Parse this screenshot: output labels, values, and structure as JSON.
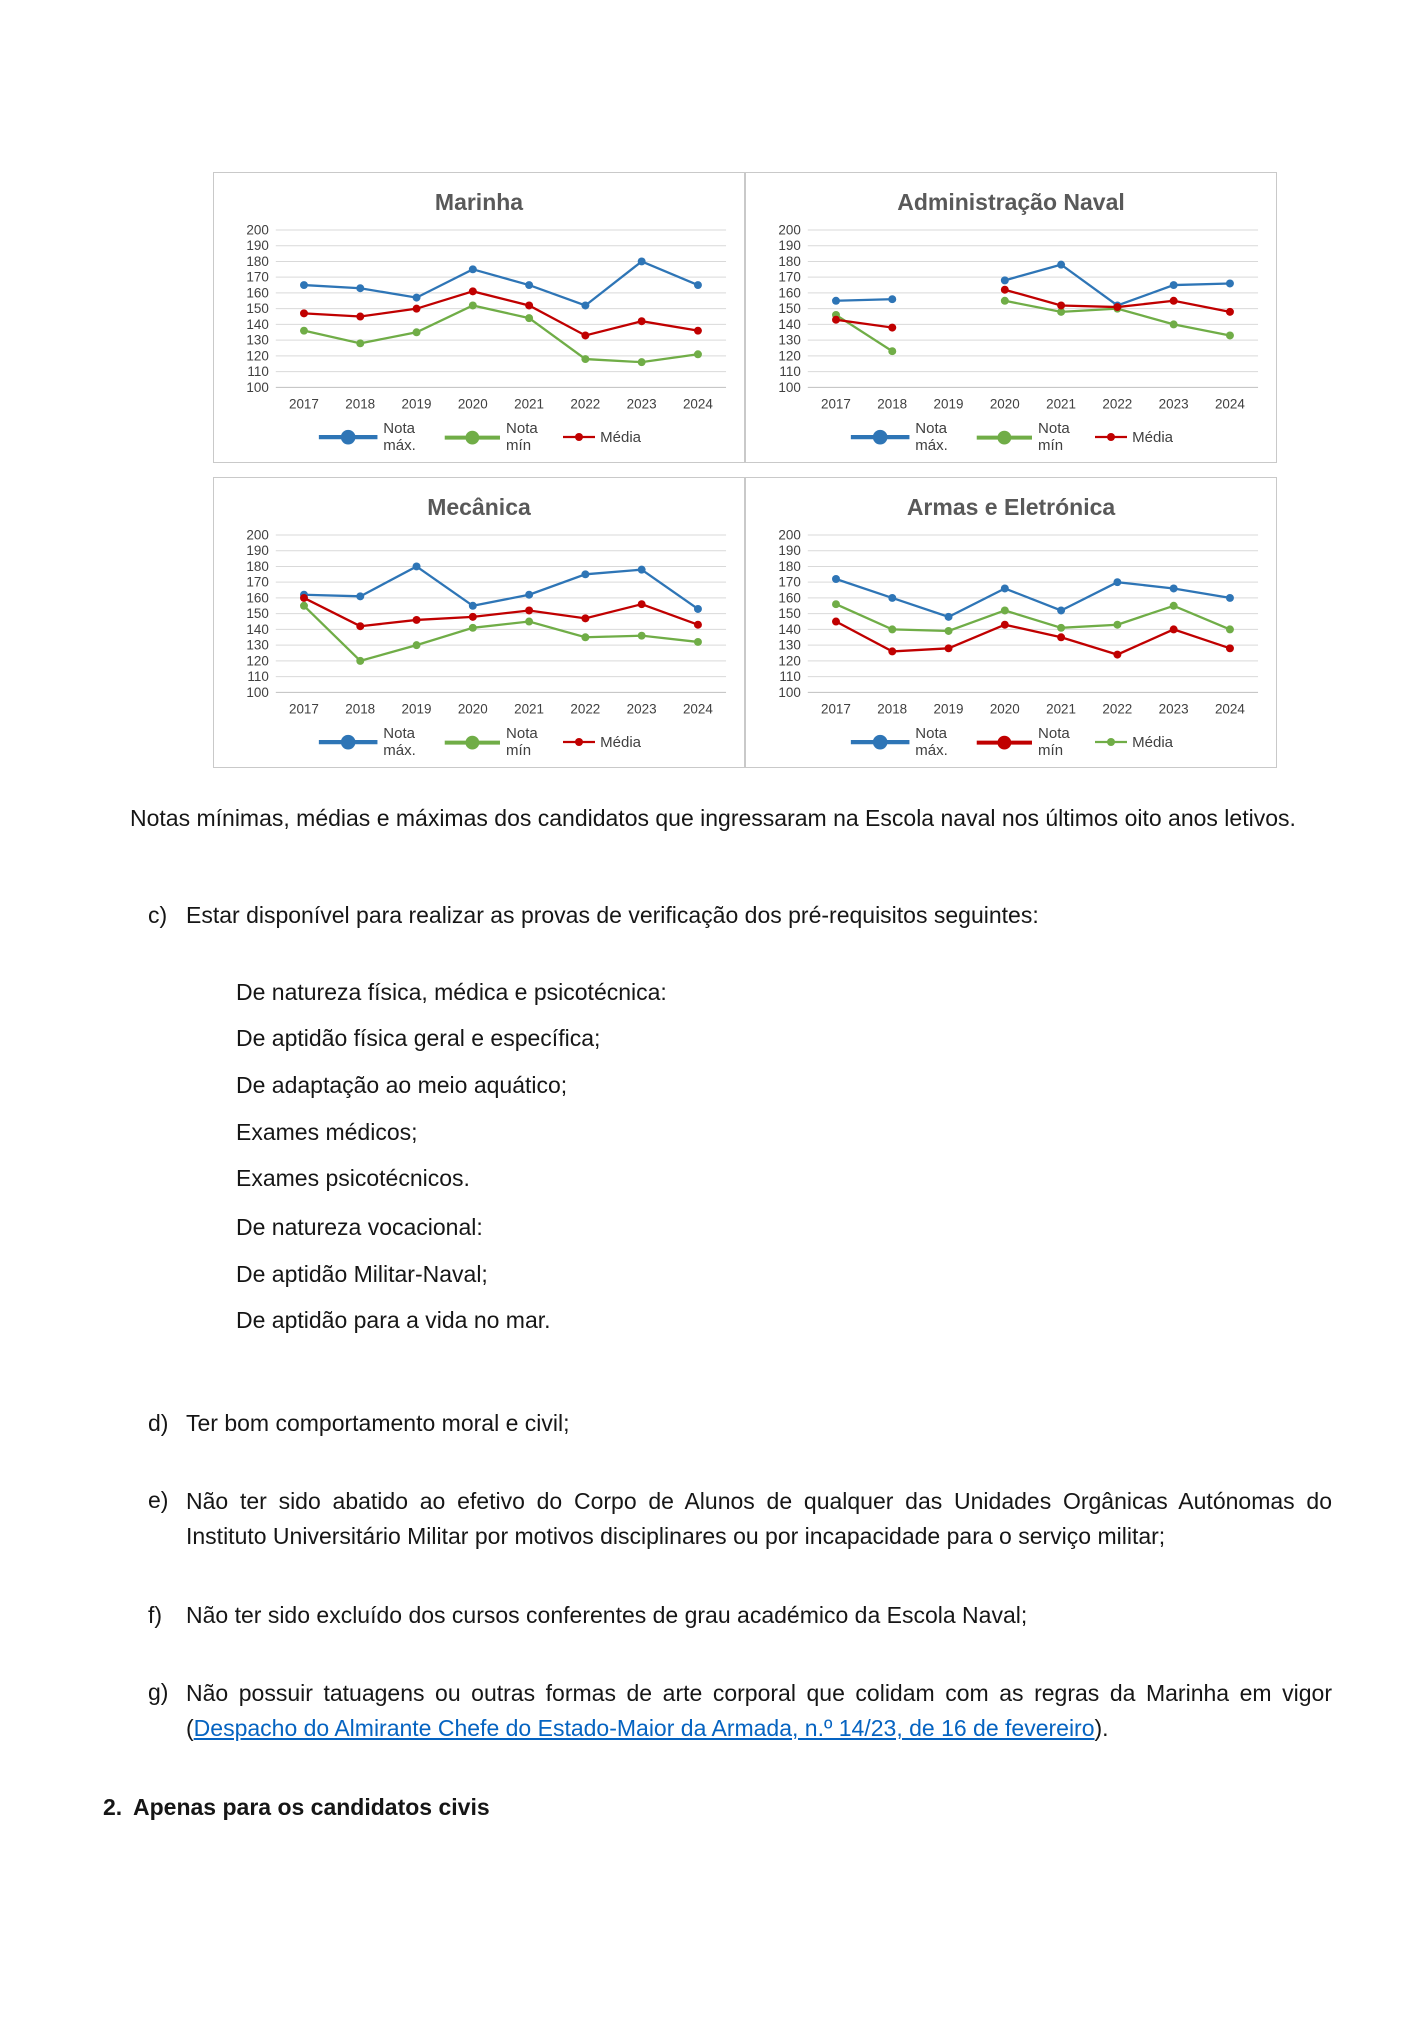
{
  "caption": "Notas mínimas, médias e máximas dos candidatos que ingressaram na Escola naval nos últimos oito anos letivos.",
  "list": {
    "c": {
      "marker": "c)",
      "text": "Estar disponível para realizar as provas de verificação dos pré-requisitos seguintes:"
    },
    "c_sub": [
      "De natureza física, médica e psicotécnica:",
      "De aptidão física geral e específica;",
      "De adaptação ao meio aquático;",
      "Exames médicos;",
      "Exames psicotécnicos.",
      "De natureza vocacional:",
      "De aptidão Militar-Naval;",
      "De aptidão para a vida no mar."
    ],
    "d": {
      "marker": "d)",
      "text": "Ter bom comportamento moral e civil;"
    },
    "e": {
      "marker": "e)",
      "text": "Não ter sido abatido ao efetivo do Corpo de Alunos de qualquer das Unidades Orgânicas Autónomas do Instituto Universitário Militar por motivos disciplinares ou por incapacidade para o serviço militar;"
    },
    "f": {
      "marker": "f)",
      "text": "Não ter sido excluído dos cursos conferentes de grau académico da Escola Naval;"
    },
    "g": {
      "marker": "g)",
      "text_before": "Não possuir tatuagens ou outras formas de arte corporal que colidam com as regras da Marinha em vigor (",
      "link_text": "Despacho do Almirante Chefe do Estado-Maior da Armada, n.º 14/23, de 16 de fevereiro",
      "text_after": ")."
    }
  },
  "heading2": {
    "marker": "2.",
    "text": "Apenas para os candidatos civis"
  },
  "colors": {
    "link": "#0563C1",
    "chart_title": "#595959",
    "grid": "#D9D9D9",
    "blue": "#2E75B6",
    "green": "#70AD47",
    "red": "#C00000"
  },
  "chart_data": [
    {
      "type": "line",
      "title": "Marinha",
      "x": [
        "2017",
        "2018",
        "2019",
        "2020",
        "2021",
        "2022",
        "2023",
        "2024"
      ],
      "ylim": [
        100,
        200
      ],
      "ytick_step": 10,
      "grid": true,
      "legend_position": "bottom",
      "series": [
        {
          "name": "Nota máx.",
          "color": "#2E75B6",
          "values": [
            165,
            163,
            157,
            175,
            165,
            152,
            180,
            165
          ]
        },
        {
          "name": "Nota mín",
          "color": "#70AD47",
          "values": [
            136,
            128,
            135,
            152,
            144,
            118,
            116,
            121
          ]
        },
        {
          "name": "Média",
          "color": "#C00000",
          "values": [
            147,
            145,
            150,
            161,
            152,
            133,
            142,
            136
          ]
        }
      ]
    },
    {
      "type": "line",
      "title": "Administração Naval",
      "x": [
        "2017",
        "2018",
        "2019",
        "2020",
        "2021",
        "2022",
        "2023",
        "2024"
      ],
      "ylim": [
        100,
        200
      ],
      "ytick_step": 10,
      "grid": true,
      "legend_position": "bottom",
      "series": [
        {
          "name": "Nota máx.",
          "color": "#2E75B6",
          "values": [
            155,
            156,
            null,
            168,
            178,
            152,
            165,
            166
          ]
        },
        {
          "name": "Nota mín",
          "color": "#70AD47",
          "values": [
            146,
            123,
            null,
            155,
            148,
            150,
            140,
            133
          ]
        },
        {
          "name": "Média",
          "color": "#C00000",
          "values": [
            143,
            138,
            null,
            162,
            152,
            151,
            155,
            148
          ]
        }
      ]
    },
    {
      "type": "line",
      "title": "Mecânica",
      "x": [
        "2017",
        "2018",
        "2019",
        "2020",
        "2021",
        "2022",
        "2023",
        "2024"
      ],
      "ylim": [
        100,
        200
      ],
      "ytick_step": 10,
      "grid": true,
      "legend_position": "bottom",
      "series": [
        {
          "name": "Nota máx.",
          "color": "#2E75B6",
          "values": [
            162,
            161,
            180,
            155,
            162,
            175,
            178,
            153
          ]
        },
        {
          "name": "Nota mín",
          "color": "#70AD47",
          "values": [
            155,
            120,
            130,
            141,
            145,
            135,
            136,
            132
          ]
        },
        {
          "name": "Média",
          "color": "#C00000",
          "values": [
            160,
            142,
            146,
            148,
            152,
            147,
            156,
            143
          ]
        }
      ]
    },
    {
      "type": "line",
      "title": "Armas e Eletrónica",
      "x": [
        "2017",
        "2018",
        "2019",
        "2020",
        "2021",
        "2022",
        "2023",
        "2024"
      ],
      "ylim": [
        100,
        200
      ],
      "ytick_step": 10,
      "grid": true,
      "legend_position": "bottom",
      "series": [
        {
          "name": "Nota máx.",
          "color": "#2E75B6",
          "values": [
            172,
            160,
            148,
            166,
            152,
            170,
            166,
            160
          ]
        },
        {
          "name": "Nota mín",
          "color": "#C00000",
          "values": [
            145,
            126,
            128,
            143,
            135,
            124,
            140,
            128
          ]
        },
        {
          "name": "Média",
          "color": "#70AD47",
          "values": [
            156,
            140,
            139,
            152,
            141,
            143,
            155,
            140
          ]
        }
      ]
    }
  ]
}
